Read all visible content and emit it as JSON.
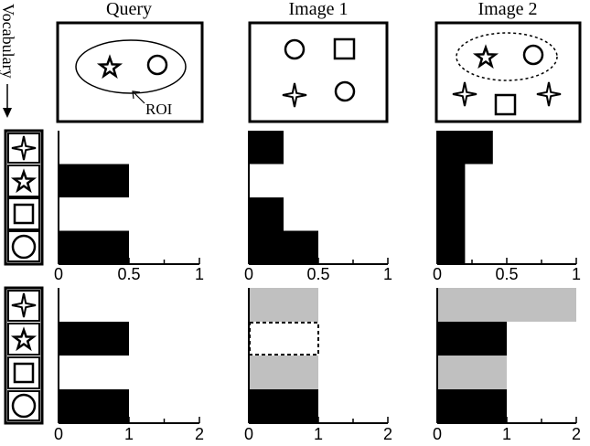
{
  "columns": [
    "Query",
    "Image 1",
    "Image 2"
  ],
  "side_label": "Vocabulary",
  "roi_label": "ROI",
  "vocabulary_icons": [
    "four-point-star-icon",
    "star-icon",
    "square-icon",
    "circle-icon"
  ],
  "row1_ticks": [
    "0",
    "0.5",
    "1"
  ],
  "row2_ticks": [
    "0",
    "1",
    "2"
  ],
  "colors": {
    "black": "#000000",
    "gray": "#c0c0c0"
  },
  "chart_data": [
    {
      "type": "bar",
      "title": "Query",
      "xlim": [
        0,
        1
      ],
      "categories": [
        "four-point star",
        "star",
        "square",
        "circle"
      ],
      "values": [
        0,
        0.5,
        0,
        0.5
      ]
    },
    {
      "type": "bar",
      "title": "Image 1",
      "xlim": [
        0,
        1
      ],
      "categories": [
        "four-point star",
        "star",
        "square",
        "circle"
      ],
      "values": [
        0.25,
        0,
        0.25,
        0.5
      ]
    },
    {
      "type": "bar",
      "title": "Image 2",
      "xlim": [
        0,
        1
      ],
      "categories": [
        "four-point star",
        "star",
        "square",
        "circle"
      ],
      "values": [
        0.4,
        0.2,
        0.2,
        0.2
      ]
    },
    {
      "type": "bar",
      "title": "Query",
      "xlim": [
        0,
        2
      ],
      "categories": [
        "four-point star",
        "star",
        "square",
        "circle"
      ],
      "values": [
        0,
        1,
        0,
        1
      ]
    },
    {
      "type": "bar",
      "title": "Image 1",
      "xlim": [
        0,
        2
      ],
      "categories": [
        "four-point star",
        "star",
        "square",
        "circle"
      ],
      "series": [
        {
          "values": [
            0,
            0,
            0,
            1
          ],
          "color": "black"
        },
        {
          "values": [
            1,
            0,
            1,
            1
          ],
          "color": "gray"
        }
      ],
      "dashed_outline": [
        0,
        1,
        0,
        0
      ]
    },
    {
      "type": "bar",
      "title": "Image 2",
      "xlim": [
        0,
        2
      ],
      "categories": [
        "four-point star",
        "star",
        "square",
        "circle"
      ],
      "series": [
        {
          "values": [
            0,
            1,
            0,
            1
          ],
          "color": "black"
        },
        {
          "values": [
            2,
            0,
            1,
            0
          ],
          "color": "gray"
        }
      ]
    }
  ]
}
